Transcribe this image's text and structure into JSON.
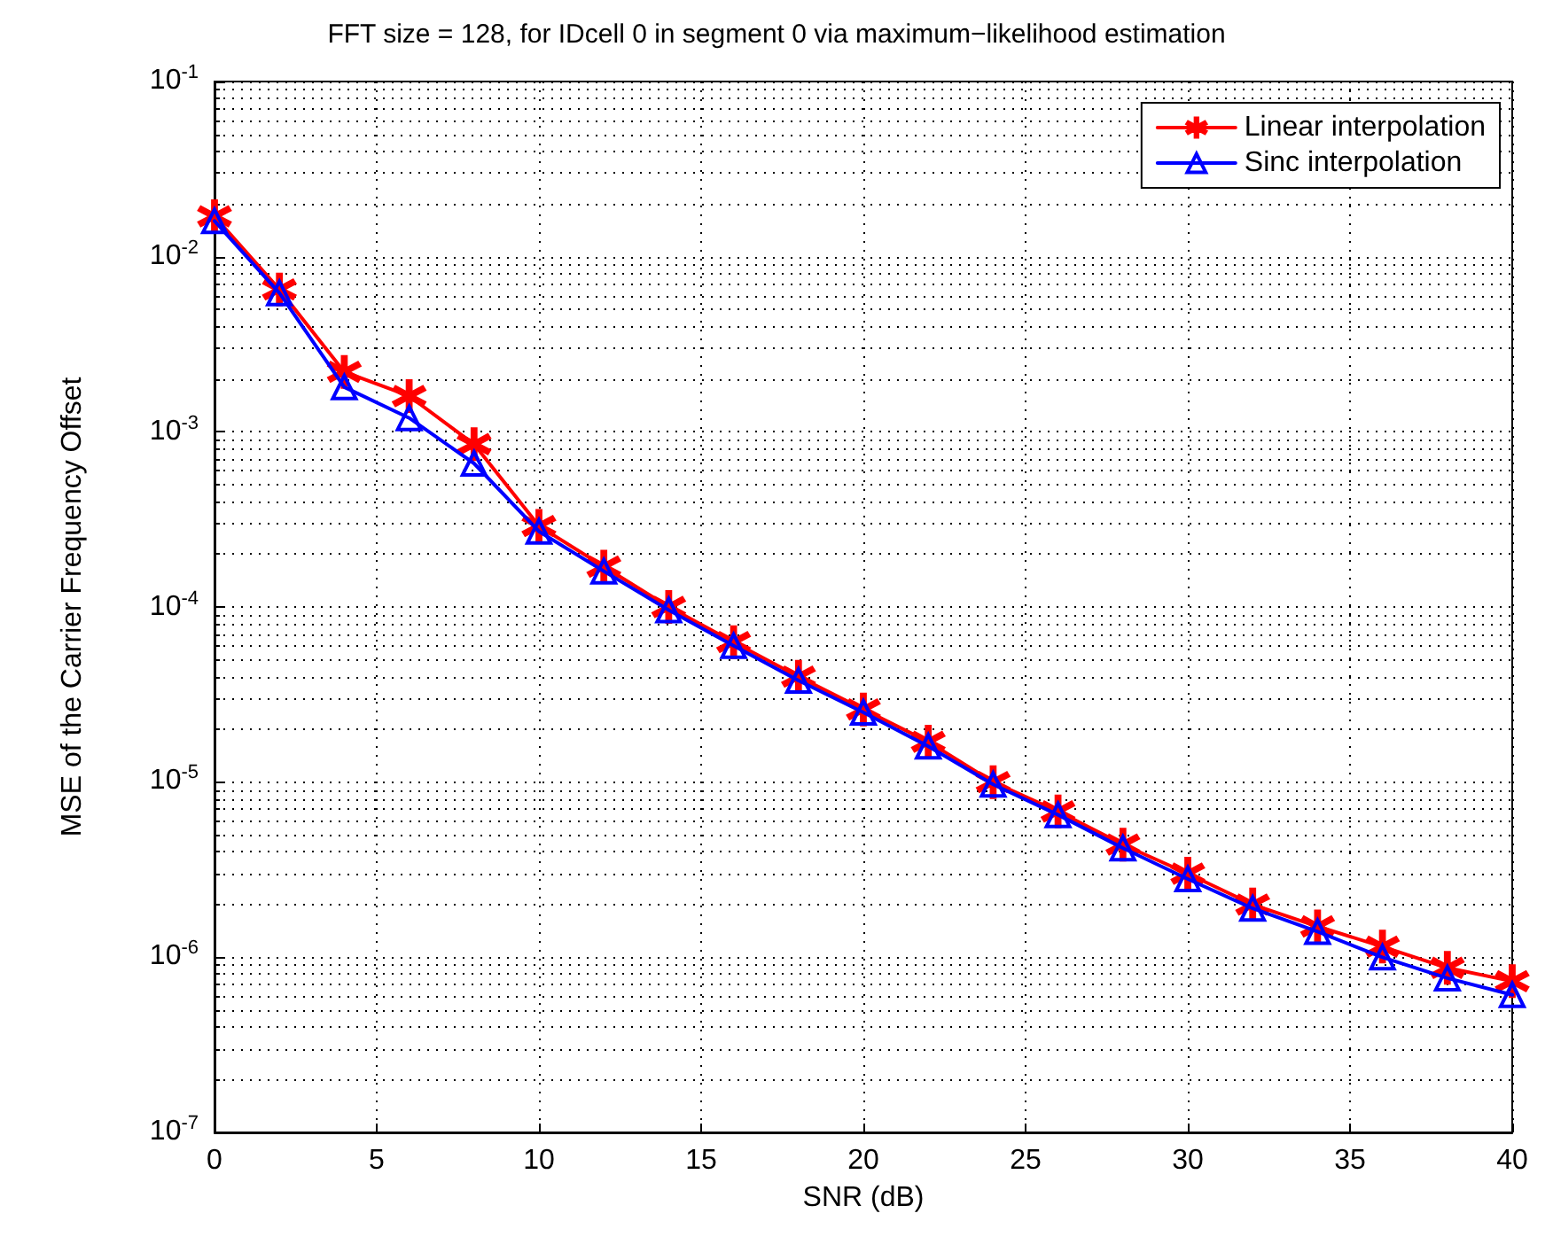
{
  "chart_data": {
    "type": "line",
    "title": "FFT size = 128, for IDcell 0 in segment 0 via maximum−likelihood estimation",
    "xlabel": "SNR (dB)",
    "ylabel": "MSE of the Carrier Frequency Offset",
    "x": [
      0,
      2,
      4,
      6,
      8,
      10,
      12,
      14,
      16,
      18,
      20,
      22,
      24,
      26,
      28,
      30,
      32,
      34,
      36,
      38,
      40
    ],
    "series": [
      {
        "name": "Linear interpolation",
        "color": "#ff0000",
        "marker": "star",
        "values": [
          0.017,
          0.0065,
          0.0022,
          0.0016,
          0.00085,
          0.00029,
          0.00017,
          0.0001,
          6.3e-05,
          4e-05,
          2.6e-05,
          1.7e-05,
          1e-05,
          6.8e-06,
          4.4e-06,
          3e-06,
          2e-06,
          1.5e-06,
          1.15e-06,
          8.7e-07,
          7.3e-07
        ]
      },
      {
        "name": "Sinc interpolation",
        "color": "#0000ff",
        "marker": "triangle",
        "values": [
          0.016,
          0.0062,
          0.0018,
          0.0012,
          0.00066,
          0.00027,
          0.00016,
          9.6e-05,
          6e-05,
          3.8e-05,
          2.5e-05,
          1.6e-05,
          9.7e-06,
          6.5e-06,
          4.2e-06,
          2.8e-06,
          1.9e-06,
          1.4e-06,
          1e-06,
          7.6e-07,
          6.1e-07
        ]
      }
    ],
    "log": "y",
    "xlim": [
      0,
      40
    ],
    "xticks": [
      0,
      5,
      10,
      15,
      20,
      25,
      30,
      35,
      40
    ],
    "ylim": [
      1e-07,
      0.1
    ],
    "yticks": [
      {
        "value": 1e-07,
        "label": "10$^{-7}$"
      },
      {
        "value": 1e-06,
        "label": "10$^{-6}$"
      },
      {
        "value": 1e-05,
        "label": "10$^{-5}$"
      },
      {
        "value": 0.0001,
        "label": "10$^{-4}$"
      },
      {
        "value": 0.001,
        "label": "10$^{-3}$"
      },
      {
        "value": 0.01,
        "label": "10$^{-2}$"
      },
      {
        "value": 0.1,
        "label": "10$^{-1}$"
      }
    ],
    "grid": true,
    "legend": "top right",
    "line_style": "solid"
  }
}
